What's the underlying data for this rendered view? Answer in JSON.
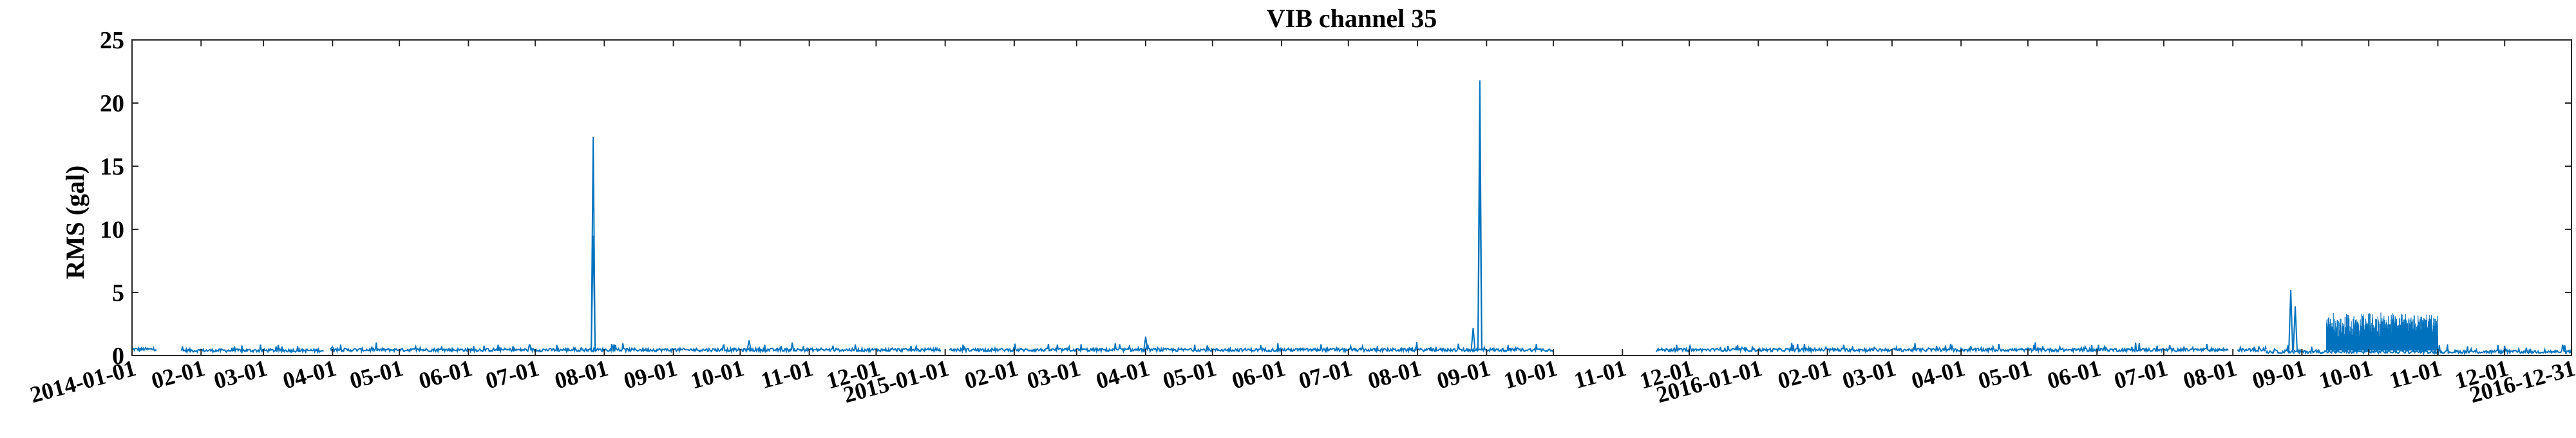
{
  "chart_data": {
    "type": "line",
    "title": "VIB channel 35",
    "xlabel": "",
    "ylabel": "RMS (gal)",
    "xlim": [
      "2014-01-01",
      "2016-12-31"
    ],
    "ylim": [
      0,
      25
    ],
    "yticks": [
      0,
      5,
      10,
      15,
      20,
      25
    ],
    "xticks": [
      {
        "date": "2014-01-01",
        "label": "2014-01-01"
      },
      {
        "date": "2014-02-01",
        "label": "02-01"
      },
      {
        "date": "2014-03-01",
        "label": "03-01"
      },
      {
        "date": "2014-04-01",
        "label": "04-01"
      },
      {
        "date": "2014-05-01",
        "label": "05-01"
      },
      {
        "date": "2014-06-01",
        "label": "06-01"
      },
      {
        "date": "2014-07-01",
        "label": "07-01"
      },
      {
        "date": "2014-08-01",
        "label": "08-01"
      },
      {
        "date": "2014-09-01",
        "label": "09-01"
      },
      {
        "date": "2014-10-01",
        "label": "10-01"
      },
      {
        "date": "2014-11-01",
        "label": "11-01"
      },
      {
        "date": "2014-12-01",
        "label": "12-01"
      },
      {
        "date": "2015-01-01",
        "label": "2015-01-01"
      },
      {
        "date": "2015-02-01",
        "label": "02-01"
      },
      {
        "date": "2015-03-01",
        "label": "03-01"
      },
      {
        "date": "2015-04-01",
        "label": "04-01"
      },
      {
        "date": "2015-05-01",
        "label": "05-01"
      },
      {
        "date": "2015-06-01",
        "label": "06-01"
      },
      {
        "date": "2015-07-01",
        "label": "07-01"
      },
      {
        "date": "2015-08-01",
        "label": "08-01"
      },
      {
        "date": "2015-09-01",
        "label": "09-01"
      },
      {
        "date": "2015-10-01",
        "label": "10-01"
      },
      {
        "date": "2015-11-01",
        "label": "11-01"
      },
      {
        "date": "2015-12-01",
        "label": "12-01"
      },
      {
        "date": "2016-01-01",
        "label": "2016-01-01"
      },
      {
        "date": "2016-02-01",
        "label": "02-01"
      },
      {
        "date": "2016-03-01",
        "label": "03-01"
      },
      {
        "date": "2016-04-01",
        "label": "04-01"
      },
      {
        "date": "2016-05-01",
        "label": "05-01"
      },
      {
        "date": "2016-06-01",
        "label": "06-01"
      },
      {
        "date": "2016-07-01",
        "label": "07-01"
      },
      {
        "date": "2016-08-01",
        "label": "08-01"
      },
      {
        "date": "2016-09-01",
        "label": "09-01"
      },
      {
        "date": "2016-10-01",
        "label": "10-01"
      },
      {
        "date": "2016-11-01",
        "label": "11-01"
      },
      {
        "date": "2016-12-01",
        "label": "12-01"
      },
      {
        "date": "2016-12-31",
        "label": "2016-12-31"
      }
    ],
    "grid": false,
    "series": [
      {
        "color": "#0072bd",
        "baseline_segments": [
          {
            "start": "2014-01-01",
            "end": "2014-01-12",
            "level": 0.5
          },
          {
            "start": "2014-01-23",
            "end": "2014-03-28",
            "level": 0.4
          },
          {
            "start": "2014-03-31",
            "end": "2014-12-30",
            "level": 0.45
          },
          {
            "start": "2015-01-03",
            "end": "2015-10-01",
            "level": 0.45
          },
          {
            "start": "2015-11-16",
            "end": "2016-07-30",
            "level": 0.45
          },
          {
            "start": "2016-08-03",
            "end": "2016-08-16",
            "level": 0.45
          },
          {
            "start": "2016-08-16",
            "end": "2016-12-31",
            "level": 0.3
          }
        ],
        "peaks": [
          {
            "date": "2014-07-27",
            "value": 17.3
          },
          {
            "date": "2014-07-27",
            "value": 9.5
          },
          {
            "date": "2014-04-01",
            "value": 0.7
          },
          {
            "date": "2014-10-05",
            "value": 1.2
          },
          {
            "date": "2015-04-01",
            "value": 1.5
          },
          {
            "date": "2015-08-26",
            "value": 2.2
          },
          {
            "date": "2015-08-29",
            "value": 21.8
          },
          {
            "date": "2015-08-29",
            "value": 15.7
          },
          {
            "date": "2016-08-27",
            "value": 5.2
          },
          {
            "date": "2016-08-29",
            "value": 3.9
          }
        ],
        "dense_noise_segment": {
          "start": "2016-09-12",
          "end": "2016-11-01",
          "min": 0.5,
          "max": 3.4
        }
      }
    ]
  }
}
